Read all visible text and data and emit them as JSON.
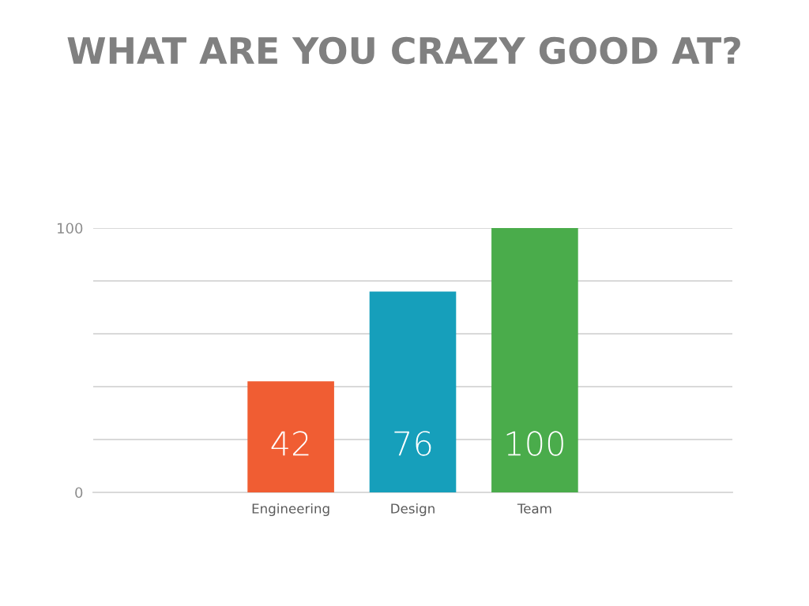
{
  "chart_data": {
    "type": "bar",
    "title": "WHAT ARE YOU CRAZY GOOD AT?",
    "categories": [
      "Engineering",
      "Design",
      "Team"
    ],
    "values": [
      42,
      76,
      100
    ],
    "colors": [
      "#f05d33",
      "#169fbb",
      "#4aac4b"
    ],
    "ylim": [
      0,
      100
    ],
    "yticks": [
      0,
      {
        "value": 20,
        "label": null
      },
      {
        "value": 40,
        "label": null
      },
      {
        "value": 60,
        "label": null
      },
      {
        "value": 80,
        "label": null
      },
      100
    ],
    "grid": "y",
    "data_labels": true
  }
}
